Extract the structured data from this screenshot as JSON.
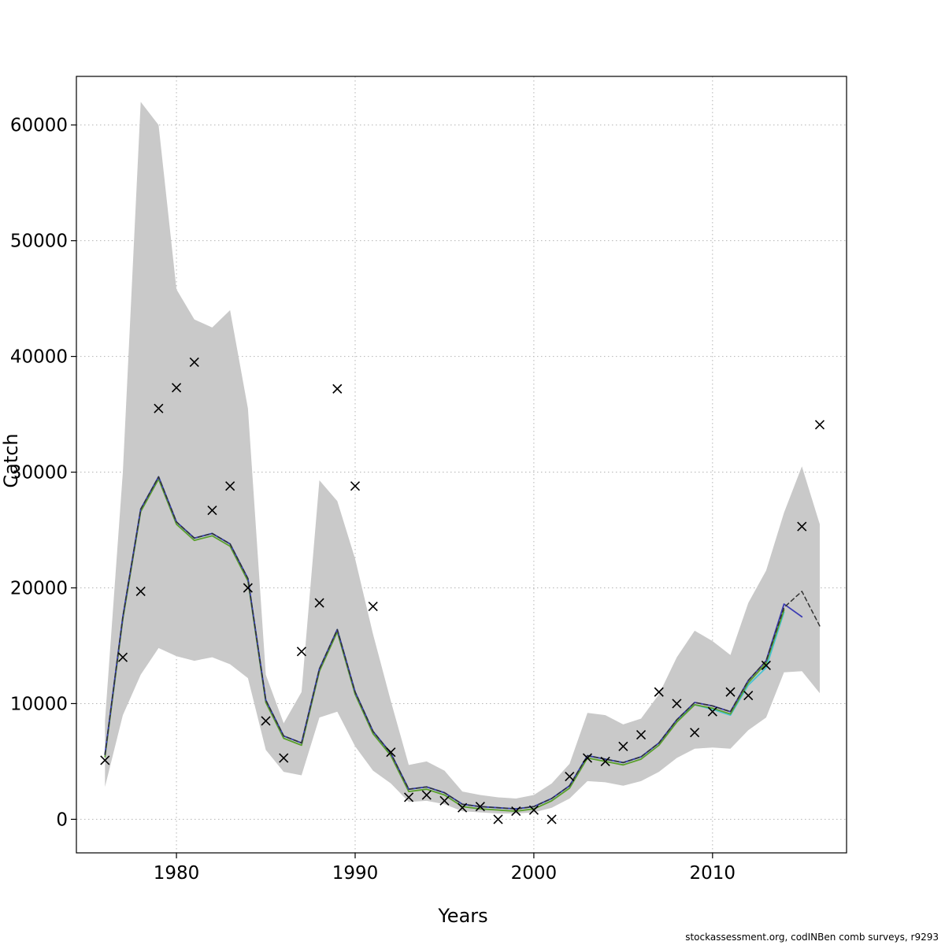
{
  "figure": {
    "footer": "stockassessment.org, codINBen comb surveys, r9293"
  },
  "chart_data": {
    "type": "line",
    "title": "",
    "xlabel": "Years",
    "ylabel": "Catch",
    "xlim": [
      1974.4,
      2017.5
    ],
    "ylim": [
      -2900,
      64200
    ],
    "xticks": [
      1980,
      1990,
      2000,
      2010
    ],
    "yticks": [
      0,
      10000,
      20000,
      30000,
      40000,
      50000,
      60000
    ],
    "grid": "dotted",
    "legend": "none",
    "colors": {
      "grid": "#b4b4b4",
      "axis": "#000000"
    },
    "years": [
      1976,
      1977,
      1978,
      1979,
      1980,
      1981,
      1982,
      1983,
      1984,
      1985,
      1986,
      1987,
      1988,
      1989,
      1990,
      1991,
      1992,
      1993,
      1994,
      1995,
      1996,
      1997,
      1998,
      1999,
      2000,
      2001,
      2002,
      2003,
      2004,
      2005,
      2006,
      2007,
      2008,
      2009,
      2010,
      2011,
      2012,
      2013,
      2014,
      2015,
      2016
    ],
    "band": {
      "label": "confidence-interval",
      "color": "#c9c9c9",
      "lower": [
        2800,
        9000,
        12500,
        14800,
        14100,
        13700,
        14000,
        13400,
        12200,
        6000,
        4100,
        3800,
        8800,
        9300,
        6300,
        4200,
        3100,
        1500,
        1600,
        1300,
        700,
        600,
        500,
        500,
        600,
        1000,
        1800,
        3300,
        3200,
        2900,
        3300,
        4100,
        5300,
        6100,
        6200,
        6100,
        7700,
        8800,
        12700,
        12800,
        10900
      ],
      "upper": [
        8500,
        30000,
        62000,
        60000,
        45800,
        43200,
        42500,
        44000,
        35500,
        12500,
        8300,
        11000,
        29300,
        27500,
        22500,
        16000,
        10200,
        4700,
        5000,
        4200,
        2400,
        2100,
        1900,
        1800,
        2100,
        3100,
        4800,
        9200,
        9000,
        8200,
        8700,
        10800,
        14000,
        16300,
        15400,
        14200,
        18700,
        21500,
        26500,
        30500,
        25500
      ]
    },
    "series": [
      {
        "name": "fit-cyan",
        "color": "#49c3d4",
        "dashed": false,
        "width": 1.8,
        "values": [
          5600,
          17500,
          26800,
          29600,
          25700,
          24300,
          24700,
          23800,
          20800,
          10300,
          7200,
          6600,
          13000,
          16400,
          11000,
          7600,
          5700,
          2600,
          2800,
          2300,
          1300,
          1100,
          1000,
          900,
          1100,
          1800,
          2900,
          5500,
          5200,
          4900,
          5400,
          6600,
          8600,
          9900,
          9500,
          9000,
          11600,
          13100,
          17900,
          null,
          null
        ]
      },
      {
        "name": "fit-green",
        "color": "#5aa02c",
        "dashed": false,
        "width": 1.8,
        "values": [
          5400,
          17300,
          26600,
          29400,
          25500,
          24100,
          24500,
          23600,
          20600,
          10100,
          7000,
          6400,
          12800,
          16200,
          10800,
          7400,
          5500,
          2400,
          2600,
          2100,
          1100,
          900,
          800,
          700,
          900,
          1600,
          2700,
          5300,
          5000,
          4700,
          5200,
          6400,
          8400,
          9900,
          9600,
          9100,
          11800,
          13500,
          18100,
          null,
          null
        ]
      },
      {
        "name": "fit-blue",
        "color": "#3b3bb3",
        "dashed": false,
        "width": 1.8,
        "values": [
          5600,
          17500,
          26800,
          29600,
          25700,
          24300,
          24700,
          23800,
          20800,
          10300,
          7200,
          6600,
          13000,
          16400,
          11000,
          7600,
          5700,
          2600,
          2800,
          2300,
          1300,
          1100,
          1000,
          900,
          1100,
          1800,
          2900,
          5500,
          5200,
          4900,
          5400,
          6600,
          8600,
          10100,
          9800,
          9300,
          12000,
          13700,
          18600,
          17500,
          null
        ]
      },
      {
        "name": "fit-dashed-black",
        "color": "#333333",
        "dashed": true,
        "width": 1.5,
        "values": [
          5600,
          17500,
          26800,
          29600,
          25700,
          24300,
          24700,
          23800,
          20800,
          10300,
          7200,
          6600,
          13000,
          16400,
          11000,
          7600,
          5700,
          2600,
          2800,
          2300,
          1300,
          1100,
          1000,
          900,
          1100,
          1800,
          2900,
          5500,
          5200,
          4900,
          5400,
          6600,
          8600,
          10100,
          9800,
          9300,
          12000,
          13700,
          18300,
          19700,
          16700
        ]
      }
    ],
    "observed": {
      "label": "observed-catch",
      "marker": "x",
      "color": "#000000",
      "years": [
        1976,
        1977,
        1978,
        1979,
        1980,
        1981,
        1982,
        1983,
        1984,
        1985,
        1986,
        1987,
        1988,
        1989,
        1990,
        1991,
        1992,
        1993,
        1994,
        1995,
        1996,
        1997,
        1998,
        1999,
        2000,
        2001,
        2002,
        2003,
        2004,
        2005,
        2006,
        2007,
        2008,
        2009,
        2010,
        2011,
        2012,
        2013,
        2014,
        2015,
        2016
      ],
      "values": [
        5100,
        14000,
        19700,
        35500,
        37300,
        39500,
        26700,
        28800,
        20000,
        8500,
        5300,
        14500,
        18700,
        37200,
        28800,
        18400,
        5800,
        1900,
        2100,
        1600,
        1000,
        1100,
        0,
        700,
        800,
        0,
        3700,
        5300,
        5000,
        6300,
        7300,
        11000,
        10000,
        7500,
        9300,
        11000,
        10700,
        13300,
        null,
        25300,
        34100
      ]
    }
  }
}
